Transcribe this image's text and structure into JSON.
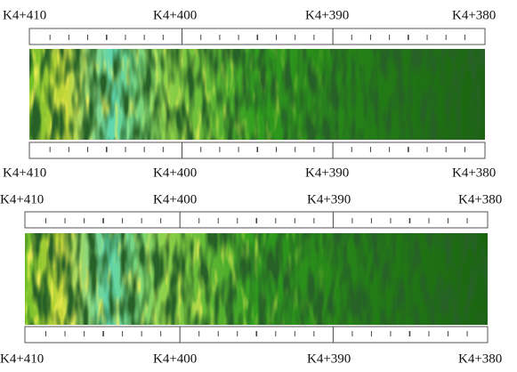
{
  "panels": [
    {
      "top_labels": [
        "K4+410",
        "K4+400",
        "K4+390",
        "K4+380"
      ],
      "bottom_labels": [
        "K4+410",
        "K4+400",
        "K4+390",
        "K4+380"
      ]
    },
    {
      "top_labels": [
        "K4+410",
        "K4+400",
        "K4+390",
        "K4+380"
      ],
      "bottom_labels": [
        "K4+410",
        "K4+400",
        "K4+390",
        "K4+380"
      ]
    }
  ]
}
